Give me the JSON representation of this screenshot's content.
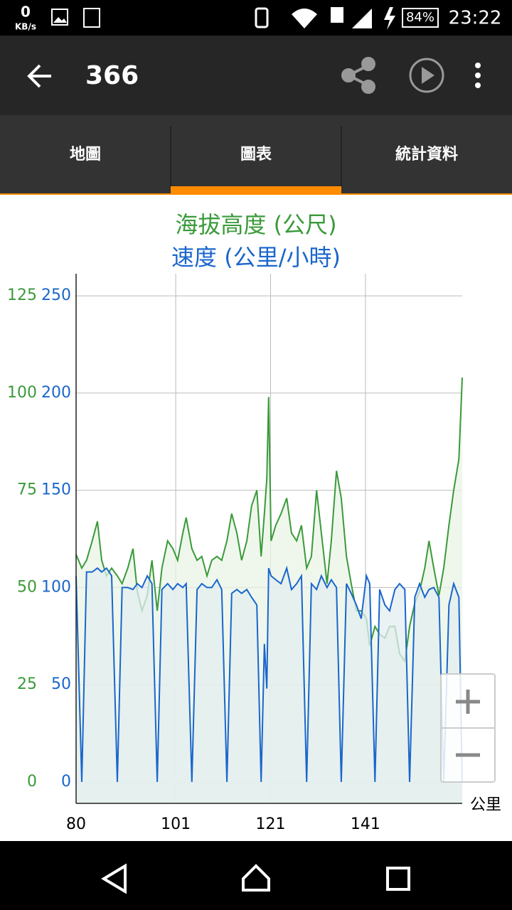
{
  "status_bar": {
    "net_speed": "0",
    "net_unit": "KB/s",
    "battery": "84%",
    "time": "23:22"
  },
  "toolbar": {
    "title": "366"
  },
  "tabs": [
    "地圖",
    "圖表",
    "統計資料"
  ],
  "chart_data": {
    "type": "area",
    "grid": true,
    "xlabel": "公里",
    "x": [
      80,
      81.2,
      82.2,
      83.4,
      84.5,
      85.4,
      86.4,
      87.5,
      88.7,
      89.7,
      90.9,
      92,
      92.9,
      93.9,
      95,
      96,
      97.1,
      98.1,
      99.3,
      100.4,
      101.4,
      102.5,
      103.2,
      104.4,
      105.5,
      106.5,
      107.6,
      108.6,
      109.7,
      110.7,
      111.8,
      112.8,
      113.9,
      114.9,
      116,
      117,
      118.1,
      119,
      119.7,
      120.2,
      120.6,
      121.1,
      122.1,
      123.2,
      124.4,
      125.4,
      126.5,
      127.5,
      128.6,
      129.6,
      130.7,
      131.7,
      132.9,
      133.8,
      134.9,
      135.9,
      137,
      138,
      139.1,
      140.1,
      141.2,
      141.9,
      143,
      144,
      145.1,
      146.1,
      147.2,
      148.2,
      149.3,
      150.3,
      151.4,
      152.4,
      153.5,
      154.4,
      155.4,
      156.5,
      157.5,
      158.6,
      159.6,
      160.7,
      161.4
    ],
    "xlim": [
      80,
      161.4
    ],
    "xticks": [
      80,
      101,
      121,
      141
    ],
    "ylim": [
      -5.5,
      130.7
    ],
    "yticks": [
      0,
      25,
      50,
      75,
      100,
      125
    ],
    "y2lim": [
      -11,
      261.4
    ],
    "y2ticks": [
      0,
      50,
      100,
      150,
      200,
      250
    ],
    "series": [
      {
        "name": "海拔高度 (公尺)",
        "color": "#3a9a3a",
        "fill": "#eaf4e6",
        "values": [
          58.5,
          55,
          57,
          62,
          67,
          57,
          53,
          55,
          53,
          51,
          55,
          60,
          49,
          44,
          48,
          57,
          44,
          55,
          62,
          60,
          57,
          64,
          68,
          60,
          57,
          58,
          53,
          57,
          58,
          57,
          62,
          69,
          64,
          57,
          62,
          71,
          75,
          58,
          69,
          78,
          99,
          62,
          66,
          69,
          73,
          64,
          62,
          66,
          55,
          58,
          75,
          64,
          51,
          62,
          80,
          73,
          58,
          51,
          44,
          44,
          42,
          35,
          40,
          38,
          37,
          40,
          40,
          33,
          31,
          40,
          46,
          49,
          55,
          62,
          55,
          48,
          55,
          66,
          75,
          83,
          104
        ]
      },
      {
        "name": "速度 (公里/小時)",
        "color": "#1a66cc",
        "fill": "#e3eef0",
        "axis": "y2",
        "values": [
          106,
          0,
          108,
          108,
          110,
          108,
          110,
          106,
          0,
          100,
          100,
          99,
          102,
          100,
          106,
          102,
          0,
          99,
          102,
          99,
          102,
          100,
          102,
          0,
          99,
          102,
          100,
          100,
          104,
          99,
          0,
          97,
          99,
          97,
          99,
          95,
          91,
          0,
          71,
          48,
          110,
          106,
          104,
          102,
          110,
          99,
          102,
          106,
          0,
          102,
          99,
          106,
          100,
          104,
          100,
          0,
          102,
          97,
          91,
          84,
          106,
          102,
          0,
          99,
          91,
          88,
          99,
          102,
          99,
          0,
          95,
          102,
          95,
          99,
          100,
          95,
          0,
          91,
          102,
          95,
          0
        ]
      }
    ]
  }
}
